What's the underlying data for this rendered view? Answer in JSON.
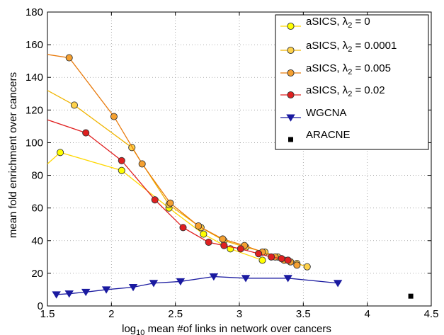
{
  "chart_data": {
    "type": "line",
    "xlabel": {
      "prefix": "log",
      "sub": "10",
      "rest": " mean #of links in network over cancers"
    },
    "ylabel": "mean fold enrichment over cancers",
    "xlim": [
      1.5,
      4.5
    ],
    "ylim": [
      0,
      180
    ],
    "xticks": [
      "1.5",
      "2",
      "2.5",
      "3",
      "3.5",
      "4",
      "4.5"
    ],
    "yticks": [
      "0",
      "20",
      "40",
      "60",
      "80",
      "100",
      "120",
      "140",
      "160",
      "180"
    ],
    "grid": true,
    "legend_position": "top-right",
    "series": [
      {
        "name": "aSICS, λ2 = 0",
        "name_parts": {
          "pre": "aSICS, λ",
          "sub": "2",
          "post": " = 0"
        },
        "color": "#ffd700",
        "line": "#ffd700",
        "marker": "circle",
        "fill": "#ffff00",
        "x": [
          1.5,
          1.6,
          2.08,
          2.45,
          2.72,
          2.93,
          3.18
        ],
        "y": [
          87,
          94,
          83,
          60,
          44,
          35,
          28
        ],
        "marked": [
          false,
          true,
          true,
          true,
          true,
          true,
          true
        ]
      },
      {
        "name": "aSICS, λ2 = 0.0001",
        "name_parts": {
          "pre": "aSICS, λ",
          "sub": "2",
          "post": " = 0.0001"
        },
        "color": "#f0b400",
        "line": "#f0b400",
        "marker": "circle",
        "fill": "#ffd24a",
        "x": [
          1.5,
          1.71,
          2.16,
          2.45,
          2.7,
          2.88,
          3.05,
          3.2,
          3.3,
          3.38,
          3.45,
          3.53
        ],
        "y": [
          132,
          123,
          97,
          62,
          48,
          40,
          36,
          33,
          30,
          28,
          26,
          24
        ],
        "marked": [
          false,
          true,
          true,
          true,
          true,
          true,
          true,
          true,
          true,
          true,
          true,
          true
        ]
      },
      {
        "name": "aSICS, λ2 = 0.005",
        "name_parts": {
          "pre": "aSICS, λ",
          "sub": "2",
          "post": " = 0.005"
        },
        "color": "#e87a0c",
        "line": "#e87a0c",
        "marker": "circle",
        "fill": "#f5a030",
        "x": [
          1.5,
          1.67,
          2.02,
          2.24,
          2.46,
          2.68,
          2.87,
          3.04,
          3.18,
          3.28,
          3.35,
          3.4,
          3.45
        ],
        "y": [
          154,
          152,
          116,
          87,
          63,
          49,
          41,
          37,
          33,
          30,
          28,
          27,
          25
        ],
        "marked": [
          false,
          true,
          true,
          true,
          true,
          true,
          true,
          true,
          true,
          true,
          true,
          true,
          true
        ]
      },
      {
        "name": "aSICS, λ2 = 0.02",
        "name_parts": {
          "pre": "aSICS, λ",
          "sub": "2",
          "post": " = 0.02"
        },
        "color": "#e02020",
        "line": "#e02020",
        "marker": "circle",
        "fill": "#e02020",
        "x": [
          1.5,
          1.8,
          2.08,
          2.34,
          2.56,
          2.76,
          2.88,
          3.01,
          3.15,
          3.25,
          3.33,
          3.38
        ],
        "y": [
          114,
          106,
          89,
          65,
          48,
          39,
          37,
          35,
          32,
          30,
          29,
          28
        ],
        "marked": [
          false,
          true,
          true,
          true,
          true,
          true,
          true,
          true,
          true,
          true,
          true,
          true
        ]
      },
      {
        "name": "WGCNA",
        "name_parts": {
          "pre": "WGCNA",
          "sub": "",
          "post": ""
        },
        "color": "#1a1aa0",
        "line": "#1a1aa0",
        "marker": "triangle-down",
        "fill": "#1a1aa0",
        "x": [
          1.57,
          1.67,
          1.8,
          1.96,
          2.17,
          2.33,
          2.54,
          2.8,
          3.05,
          3.38,
          3.77
        ],
        "y": [
          7,
          7.5,
          8.5,
          10,
          11.5,
          14,
          15,
          18,
          17,
          17,
          14
        ],
        "marked": [
          true,
          true,
          true,
          true,
          true,
          true,
          true,
          true,
          true,
          true,
          true
        ]
      },
      {
        "name": "ARACNE",
        "name_parts": {
          "pre": "ARACNE",
          "sub": "",
          "post": ""
        },
        "color": "#000000",
        "line": "none",
        "marker": "square",
        "fill": "#000000",
        "x": [
          4.34
        ],
        "y": [
          6
        ],
        "marked": [
          true
        ]
      }
    ]
  }
}
